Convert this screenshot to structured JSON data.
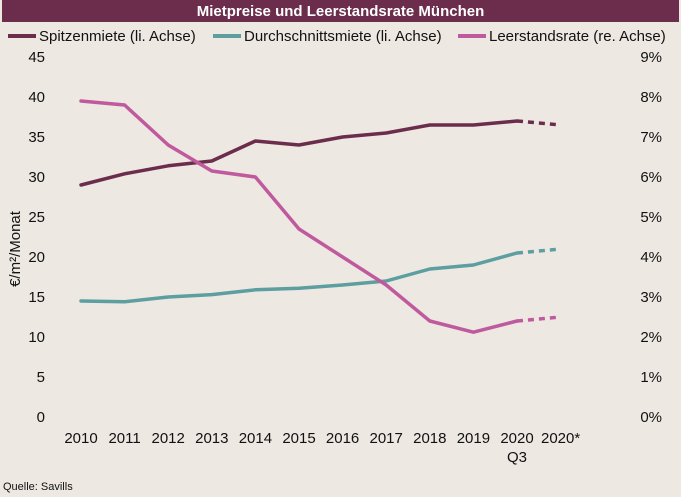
{
  "title": "Mietpreise und Leerstandsrate München",
  "source": "Quelle: Savills",
  "chart_data": {
    "type": "line",
    "categories": [
      "2010",
      "2011",
      "2012",
      "2013",
      "2014",
      "2015",
      "2016",
      "2017",
      "2018",
      "2019",
      "2020",
      "2020*"
    ],
    "category_sublabels": [
      "",
      "",
      "",
      "",
      "",
      "",
      "",
      "",
      "",
      "",
      "Q3",
      ""
    ],
    "ylabel": "€/m²/Monat",
    "ylim": [
      0,
      45
    ],
    "y_ticks": [
      0,
      5,
      10,
      15,
      20,
      25,
      30,
      35,
      40,
      45
    ],
    "y2lim": [
      0,
      9
    ],
    "y2_ticks": [
      "0%",
      "1%",
      "2%",
      "3%",
      "4%",
      "5%",
      "6%",
      "7%",
      "8%",
      "9%"
    ],
    "grid": false,
    "legend_position": "top",
    "series": [
      {
        "name": "Spitzenmiete (li. Achse)",
        "axis": "left",
        "color": "#6b2d4b",
        "values": [
          29.0,
          30.4,
          31.4,
          32.0,
          34.5,
          34.0,
          35.0,
          35.5,
          36.5,
          36.5,
          37.0,
          36.5
        ]
      },
      {
        "name": "Durchschnittsmiete (li. Achse)",
        "axis": "left",
        "color": "#5d9ea1",
        "values": [
          14.5,
          14.4,
          15.0,
          15.3,
          15.9,
          16.1,
          16.5,
          17.0,
          18.5,
          19.0,
          20.5,
          21.0
        ]
      },
      {
        "name": "Leerstandsrate (re. Achse)",
        "axis": "right",
        "color": "#c05a9e",
        "values": [
          7.9,
          7.8,
          6.8,
          6.15,
          6.0,
          4.7,
          4.0,
          3.3,
          2.4,
          2.12,
          2.4,
          2.5
        ]
      }
    ],
    "forecast_from_index": 10
  }
}
